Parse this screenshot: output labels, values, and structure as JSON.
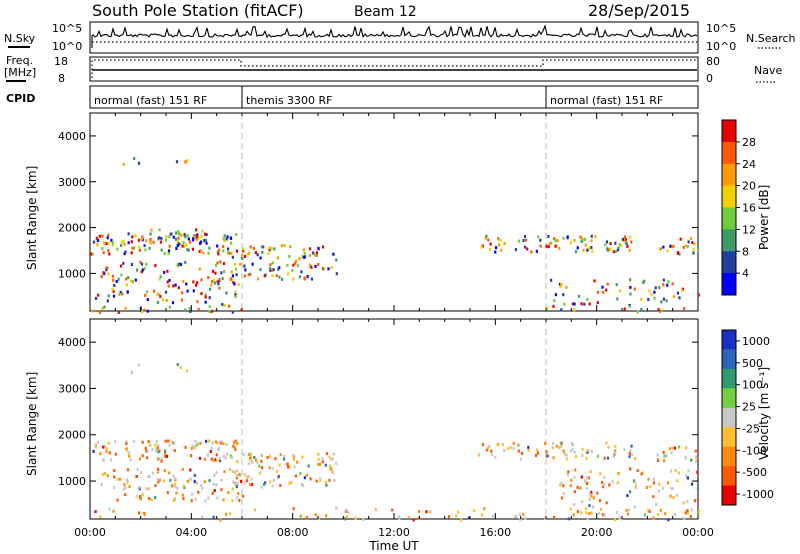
{
  "header": {
    "title": "South Pole Station (fitACF)",
    "beam": "Beam 12",
    "date": "28/Sep/2015"
  },
  "top_panels": {
    "nsky_label": "N.Sky",
    "nsearch_label": "N.Search",
    "freq_label_1": "Freq.",
    "freq_label_2": "[MHz]",
    "nave_label": "Nave",
    "cpid_label": "CPID",
    "nsky_ticks": [
      "10^5",
      "10^0"
    ],
    "nsearch_ticks": [
      "10^5",
      "10^0"
    ],
    "freq_ticks": [
      "18",
      "8"
    ],
    "nave_ticks": [
      "80",
      "0"
    ],
    "cpid_segments": [
      {
        "start_hour": 0,
        "end_hour": 6,
        "label": "normal (fast) 151 RF"
      },
      {
        "start_hour": 6,
        "end_hour": 18,
        "label": "themis 3300 RF"
      },
      {
        "start_hour": 18,
        "end_hour": 24,
        "label": "normal (fast) 151 RF"
      }
    ]
  },
  "chart_data": [
    {
      "type": "heatmap",
      "name": "power",
      "xlabel": "Time UT",
      "ylabel": "Slant Range [km]",
      "xlim": [
        0,
        24
      ],
      "ylim": [
        180,
        4500
      ],
      "x_ticks": [
        "00:00",
        "04:00",
        "08:00",
        "12:00",
        "16:00",
        "20:00",
        "00:00"
      ],
      "y_ticks": [
        1000,
        2000,
        3000,
        4000
      ],
      "colorbar_label": "Power [dB]",
      "colorbar_ticks": [
        "28",
        "24",
        "20",
        "16",
        "12",
        "8",
        "4"
      ],
      "colorbar_colors": [
        "#e80000",
        "#ff5a00",
        "#ff9c00",
        "#f0d000",
        "#6fcc3a",
        "#3f9a6a",
        "#2040a0",
        "#0000ff"
      ],
      "scatter_regions": [
        {
          "t0": 0.0,
          "t1": 5.9,
          "r0": 1450,
          "r1": 1900,
          "density": 0.72
        },
        {
          "t0": 2.2,
          "t1": 4.6,
          "r0": 1700,
          "r1": 2000,
          "density": 0.75
        },
        {
          "t0": 0.4,
          "t1": 6.0,
          "r0": 600,
          "r1": 1300,
          "density": 0.45
        },
        {
          "t0": 5.5,
          "t1": 9.7,
          "r0": 900,
          "r1": 1650,
          "density": 0.55
        },
        {
          "t0": 1.2,
          "t1": 1.9,
          "r0": 3350,
          "r1": 3550,
          "density": 0.45
        },
        {
          "t0": 3.2,
          "t1": 3.8,
          "r0": 3400,
          "r1": 3550,
          "density": 0.55
        },
        {
          "t0": 15.3,
          "t1": 21.5,
          "r0": 1500,
          "r1": 1850,
          "density": 0.6
        },
        {
          "t0": 19.5,
          "t1": 21.2,
          "r0": 1500,
          "r1": 1800,
          "density": 0.5
        },
        {
          "t0": 22.3,
          "t1": 24.0,
          "r0": 1450,
          "r1": 1800,
          "density": 0.6
        },
        {
          "t0": 18.0,
          "t1": 24.0,
          "r0": 180,
          "r1": 900,
          "density": 0.28
        },
        {
          "t0": 0.0,
          "t1": 6.0,
          "r0": 180,
          "r1": 600,
          "density": 0.35
        }
      ]
    },
    {
      "type": "heatmap",
      "name": "velocity",
      "xlabel": "Time UT",
      "ylabel": "Slant Range [km]",
      "xlim": [
        0,
        24
      ],
      "ylim": [
        180,
        4500
      ],
      "x_ticks": [
        "00:00",
        "04:00",
        "08:00",
        "12:00",
        "16:00",
        "20:00",
        "00:00"
      ],
      "y_ticks": [
        1000,
        2000,
        3000,
        4000
      ],
      "colorbar_label": "Velocity [m s⁻¹]",
      "colorbar_ticks": [
        "1000",
        "500",
        "100",
        "25",
        "-25",
        "-100",
        "-500",
        "-1000"
      ],
      "colorbar_colors": [
        "#1a30c0",
        "#2c64b8",
        "#2f9a70",
        "#6fd040",
        "#c8c8c8",
        "#ffbf30",
        "#ff8a10",
        "#ff5a00",
        "#e80000"
      ],
      "scatter_regions": [
        {
          "t0": 0.0,
          "t1": 5.9,
          "r0": 1450,
          "r1": 1900,
          "density": 0.72
        },
        {
          "t0": 0.4,
          "t1": 6.0,
          "r0": 600,
          "r1": 1300,
          "density": 0.5
        },
        {
          "t0": 5.5,
          "t1": 9.7,
          "r0": 900,
          "r1": 1650,
          "density": 0.55
        },
        {
          "t0": 1.2,
          "t1": 1.9,
          "r0": 3350,
          "r1": 3550,
          "density": 0.45
        },
        {
          "t0": 3.2,
          "t1": 3.8,
          "r0": 3400,
          "r1": 3550,
          "density": 0.55
        },
        {
          "t0": 15.3,
          "t1": 21.5,
          "r0": 1500,
          "r1": 1850,
          "density": 0.6
        },
        {
          "t0": 22.3,
          "t1": 24.0,
          "r0": 1450,
          "r1": 1800,
          "density": 0.6
        },
        {
          "t0": 18.5,
          "t1": 24.0,
          "r0": 300,
          "r1": 1300,
          "density": 0.35
        },
        {
          "t0": 0.0,
          "t1": 24.0,
          "r0": 180,
          "r1": 450,
          "density": 0.2
        }
      ]
    }
  ]
}
